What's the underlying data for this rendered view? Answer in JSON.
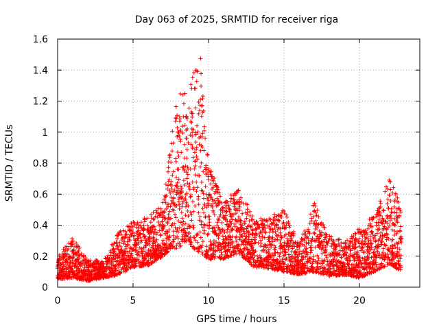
{
  "chart_data": {
    "type": "scatter",
    "title": "Day 063 of 2025, SRMTID for receiver riga",
    "xlabel": "GPS time / hours",
    "ylabel": "SRMTID / TECUs",
    "xlim": [
      0,
      24
    ],
    "ylim": [
      0,
      1.6
    ],
    "x_ticks": [
      0,
      5,
      10,
      15,
      20
    ],
    "x_tick_labels": [
      "0",
      "5",
      "10",
      "15",
      "20"
    ],
    "y_ticks": [
      0,
      0.2,
      0.4,
      0.6,
      0.8,
      1.0,
      1.2,
      1.4,
      1.6
    ],
    "y_tick_labels": [
      "0",
      "0.2",
      "0.4",
      "0.6",
      "0.8",
      "1",
      "1.2",
      "1.4",
      "1.6"
    ],
    "grid": true,
    "marker": "plus",
    "color": "#ff0000",
    "series": [
      {
        "name": "SRMTID",
        "profile_description": "dense per-satellite samples, approx. every 0.1 h from 0 to 22.8 h",
        "envelope": [
          {
            "x": 0.0,
            "low": 0.05,
            "high": 0.2
          },
          {
            "x": 1.0,
            "low": 0.06,
            "high": 0.32
          },
          {
            "x": 2.0,
            "low": 0.04,
            "high": 0.18
          },
          {
            "x": 3.0,
            "low": 0.06,
            "high": 0.17
          },
          {
            "x": 4.0,
            "low": 0.08,
            "high": 0.36
          },
          {
            "x": 5.0,
            "low": 0.13,
            "high": 0.44
          },
          {
            "x": 6.0,
            "low": 0.14,
            "high": 0.45
          },
          {
            "x": 7.0,
            "low": 0.2,
            "high": 0.55
          },
          {
            "x": 7.5,
            "low": 0.25,
            "high": 0.95
          },
          {
            "x": 8.0,
            "low": 0.25,
            "high": 1.3
          },
          {
            "x": 8.5,
            "low": 0.3,
            "high": 1.26
          },
          {
            "x": 9.0,
            "low": 0.25,
            "high": 1.38
          },
          {
            "x": 9.5,
            "low": 0.22,
            "high": 1.48
          },
          {
            "x": 10.0,
            "low": 0.18,
            "high": 0.8
          },
          {
            "x": 11.0,
            "low": 0.18,
            "high": 0.55
          },
          {
            "x": 12.0,
            "low": 0.22,
            "high": 0.65
          },
          {
            "x": 13.0,
            "low": 0.13,
            "high": 0.45
          },
          {
            "x": 14.0,
            "low": 0.12,
            "high": 0.46
          },
          {
            "x": 15.0,
            "low": 0.1,
            "high": 0.5
          },
          {
            "x": 16.0,
            "low": 0.08,
            "high": 0.28
          },
          {
            "x": 17.0,
            "low": 0.1,
            "high": 0.55
          },
          {
            "x": 18.0,
            "low": 0.07,
            "high": 0.33
          },
          {
            "x": 19.0,
            "low": 0.08,
            "high": 0.3
          },
          {
            "x": 20.0,
            "low": 0.06,
            "high": 0.38
          },
          {
            "x": 21.0,
            "low": 0.1,
            "high": 0.47
          },
          {
            "x": 22.0,
            "low": 0.15,
            "high": 0.7
          },
          {
            "x": 22.8,
            "low": 0.1,
            "high": 0.55
          }
        ]
      }
    ]
  }
}
